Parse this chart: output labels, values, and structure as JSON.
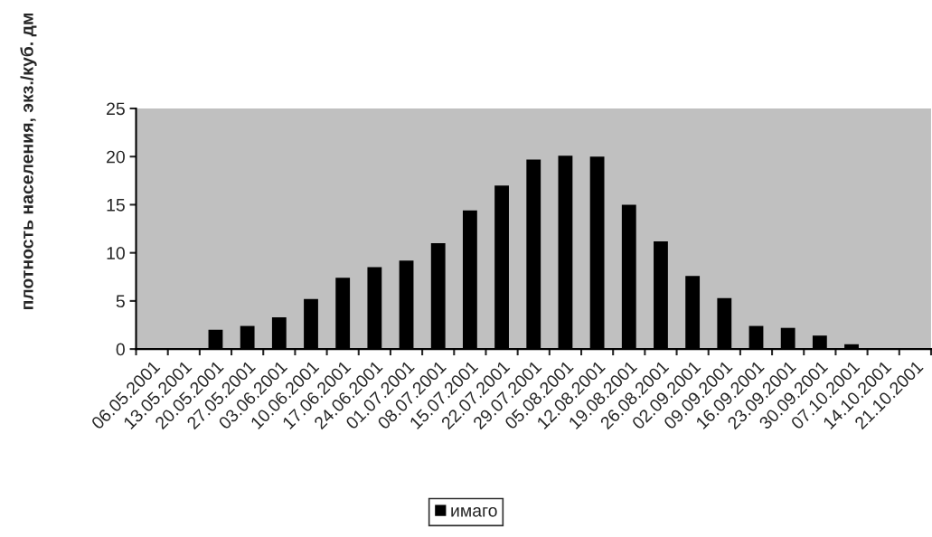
{
  "chart_data": {
    "type": "bar",
    "ylabel": "плотность населения, экз./куб. дм",
    "categories": [
      "06.05.2001",
      "13.05.2001",
      "20.05.2001",
      "27.05.2001",
      "03.06.2001",
      "10.06.2001",
      "17.06.2001",
      "24.06.2001",
      "01.07.2001",
      "08.07.2001",
      "15.07.2001",
      "22.07.2001",
      "29.07.2001",
      "05.08.2001",
      "12.08.2001",
      "19.08.2001",
      "26.08.2001",
      "02.09.2001",
      "09.09.2001",
      "16.09.2001",
      "23.09.2001",
      "30.09.2001",
      "07.10.2001",
      "14.10.2001",
      "21.10.2001"
    ],
    "series": [
      {
        "name": "имаго",
        "color": "#000000",
        "values": [
          0,
          0,
          2.0,
          2.4,
          3.3,
          5.2,
          7.4,
          8.5,
          9.2,
          11.0,
          14.4,
          17.0,
          19.7,
          20.1,
          20.0,
          15.0,
          11.2,
          7.6,
          5.3,
          2.4,
          2.2,
          1.4,
          0.5,
          0,
          0
        ]
      }
    ],
    "ylim": [
      0,
      25
    ],
    "yticks": [
      0,
      5,
      10,
      15,
      20,
      25
    ],
    "grid": false,
    "legend": "bottom"
  }
}
